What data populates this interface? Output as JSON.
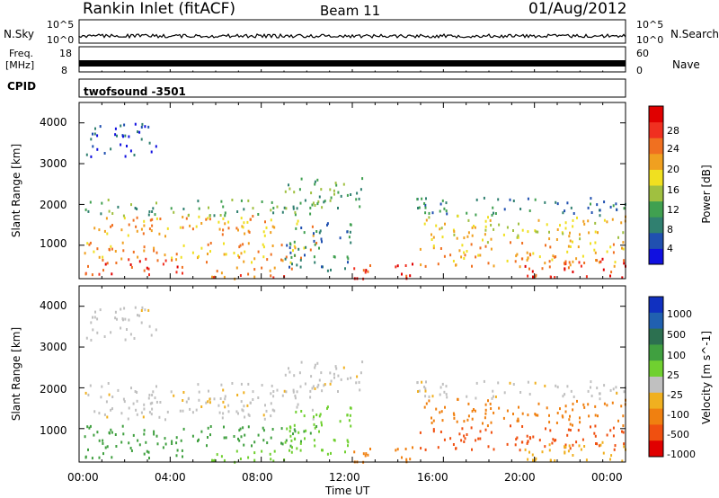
{
  "header": {
    "title": "Rankin Inlet (fitACF)",
    "beam": "Beam 11",
    "date": "01/Aug/2012"
  },
  "top_panels": {
    "nsky_label": "N.Sky",
    "nsky_ticks": [
      "10^5",
      "10^0"
    ],
    "nsearch_label": "N.Search",
    "nsearch_ticks": [
      "10^5",
      "10^0"
    ],
    "freq_label_1": "Freq.",
    "freq_label_2": "[MHz]",
    "freq_ticks": [
      "18",
      "8"
    ],
    "nave_label": "Nave",
    "nave_ticks": [
      "60",
      "0"
    ],
    "cpid_label": "CPID",
    "cpid_value": "twofsound  -3501"
  },
  "chart_data": [
    {
      "type": "heatmap",
      "panel": "power",
      "ylabel": "Slant Range [km]",
      "yticks": [
        1000,
        2000,
        3000,
        4000
      ],
      "ylim": [
        180,
        4500
      ],
      "xticks": [
        "00:00",
        "04:00",
        "08:00",
        "12:00",
        "16:00",
        "20:00",
        "00:00"
      ],
      "xlim_hours": [
        0,
        24
      ],
      "colorbar": {
        "label": "Power [dB]",
        "ticks": [
          "4",
          "8",
          "12",
          "16",
          "20",
          "24",
          "28"
        ],
        "colors": [
          "#1010e0",
          "#2050b0",
          "#308070",
          "#40a050",
          "#a0c040",
          "#f0e020",
          "#f0a020",
          "#f07020",
          "#f03020",
          "#e00000"
        ]
      }
    },
    {
      "type": "heatmap",
      "panel": "velocity",
      "ylabel": "Slant Range [km]",
      "yticks": [
        1000,
        2000,
        3000,
        4000
      ],
      "ylim": [
        180,
        4500
      ],
      "xticks": [
        "00:00",
        "04:00",
        "08:00",
        "12:00",
        "16:00",
        "20:00",
        "00:00"
      ],
      "xlim_hours": [
        0,
        24
      ],
      "xlabel": "Time UT",
      "colorbar": {
        "label": "Velocity [m s^-1]",
        "ticks": [
          "1000",
          "500",
          "100",
          "25",
          "-25",
          "-100",
          "-500",
          "-1000"
        ],
        "colors": [
          "#1030c0",
          "#2060b0",
          "#2c7050",
          "#40a040",
          "#70d030",
          "#c0c0c0",
          "#f0b020",
          "#f08010",
          "#f05010",
          "#e00000"
        ]
      }
    }
  ]
}
